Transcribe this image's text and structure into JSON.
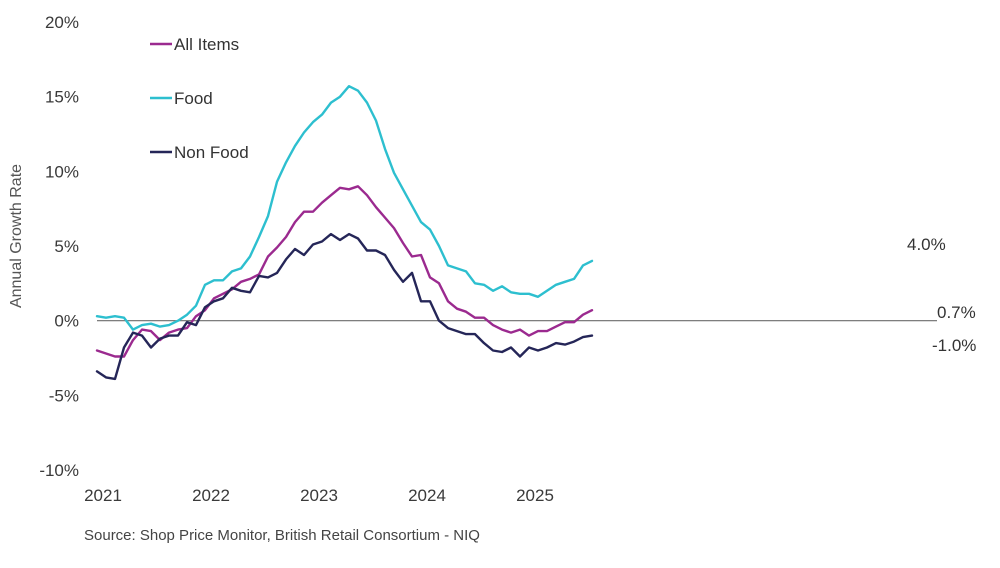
{
  "chart_data": {
    "type": "line",
    "title": "",
    "xlabel": "",
    "ylabel": "Annual Growth Rate",
    "ylim": [
      -10,
      20
    ],
    "yticks": [
      -10,
      -5,
      0,
      5,
      10,
      15,
      20
    ],
    "ytick_labels": [
      "-10%",
      "-5%",
      "0%",
      "5%",
      "10%",
      "15%",
      "20%"
    ],
    "xticks": [
      2021,
      2022,
      2023,
      2024,
      2025
    ],
    "xtick_labels": [
      "2021",
      "2022",
      "2023",
      "2024",
      "2025"
    ],
    "x_start": 2021.0,
    "x_step": 0.083333,
    "grid": false,
    "legend_position": "top-left",
    "series": [
      {
        "name": "All Items",
        "color": "#9b2a8f",
        "end_label": "0.7%",
        "values": [
          -2.0,
          -2.2,
          -2.4,
          -2.4,
          -1.3,
          -0.6,
          -0.7,
          -1.3,
          -0.8,
          -0.6,
          -0.5,
          0.3,
          0.7,
          1.5,
          1.8,
          2.1,
          2.6,
          2.8,
          3.1,
          4.3,
          4.9,
          5.6,
          6.6,
          7.3,
          7.3,
          7.9,
          8.4,
          8.9,
          8.8,
          9.0,
          8.4,
          7.6,
          6.9,
          6.2,
          5.2,
          4.3,
          4.4,
          2.9,
          2.5,
          1.3,
          0.8,
          0.6,
          0.2,
          0.2,
          -0.3,
          -0.6,
          -0.8,
          -0.6,
          -1.0,
          -0.7,
          -0.7,
          -0.4,
          -0.1,
          -0.1,
          0.4,
          0.7
        ]
      },
      {
        "name": "Food",
        "color": "#2dbfcf",
        "end_label": "4.0%",
        "values": [
          0.3,
          0.2,
          0.3,
          0.2,
          -0.6,
          -0.3,
          -0.2,
          -0.4,
          -0.3,
          0.0,
          0.4,
          1.0,
          2.4,
          2.7,
          2.7,
          3.3,
          3.5,
          4.3,
          5.6,
          7.0,
          9.3,
          10.6,
          11.7,
          12.6,
          13.3,
          13.8,
          14.6,
          15.0,
          15.7,
          15.4,
          14.6,
          13.4,
          11.5,
          9.9,
          8.8,
          7.7,
          6.6,
          6.1,
          5.0,
          3.7,
          3.5,
          3.3,
          2.5,
          2.4,
          2.0,
          2.3,
          1.9,
          1.8,
          1.8,
          1.6,
          2.0,
          2.4,
          2.6,
          2.8,
          3.7,
          4.0
        ]
      },
      {
        "name": "Non Food",
        "color": "#252658",
        "end_label": "-1.0%",
        "values": [
          -3.4,
          -3.8,
          -3.9,
          -1.8,
          -0.8,
          -1.0,
          -1.8,
          -1.2,
          -1.0,
          -1.0,
          -0.1,
          -0.3,
          0.9,
          1.3,
          1.5,
          2.2,
          2.0,
          1.9,
          3.0,
          2.9,
          3.2,
          4.1,
          4.8,
          4.4,
          5.1,
          5.3,
          5.8,
          5.4,
          5.8,
          5.5,
          4.7,
          4.7,
          4.4,
          3.4,
          2.6,
          3.2,
          1.3,
          1.3,
          0.0,
          -0.5,
          -0.7,
          -0.9,
          -0.9,
          -1.5,
          -2.0,
          -2.1,
          -1.8,
          -2.4,
          -1.8,
          -2.0,
          -1.8,
          -1.5,
          -1.6,
          -1.4,
          -1.1,
          -1.0
        ]
      }
    ]
  },
  "source": "Source: Shop Price Monitor, British Retail Consortium - NIQ"
}
